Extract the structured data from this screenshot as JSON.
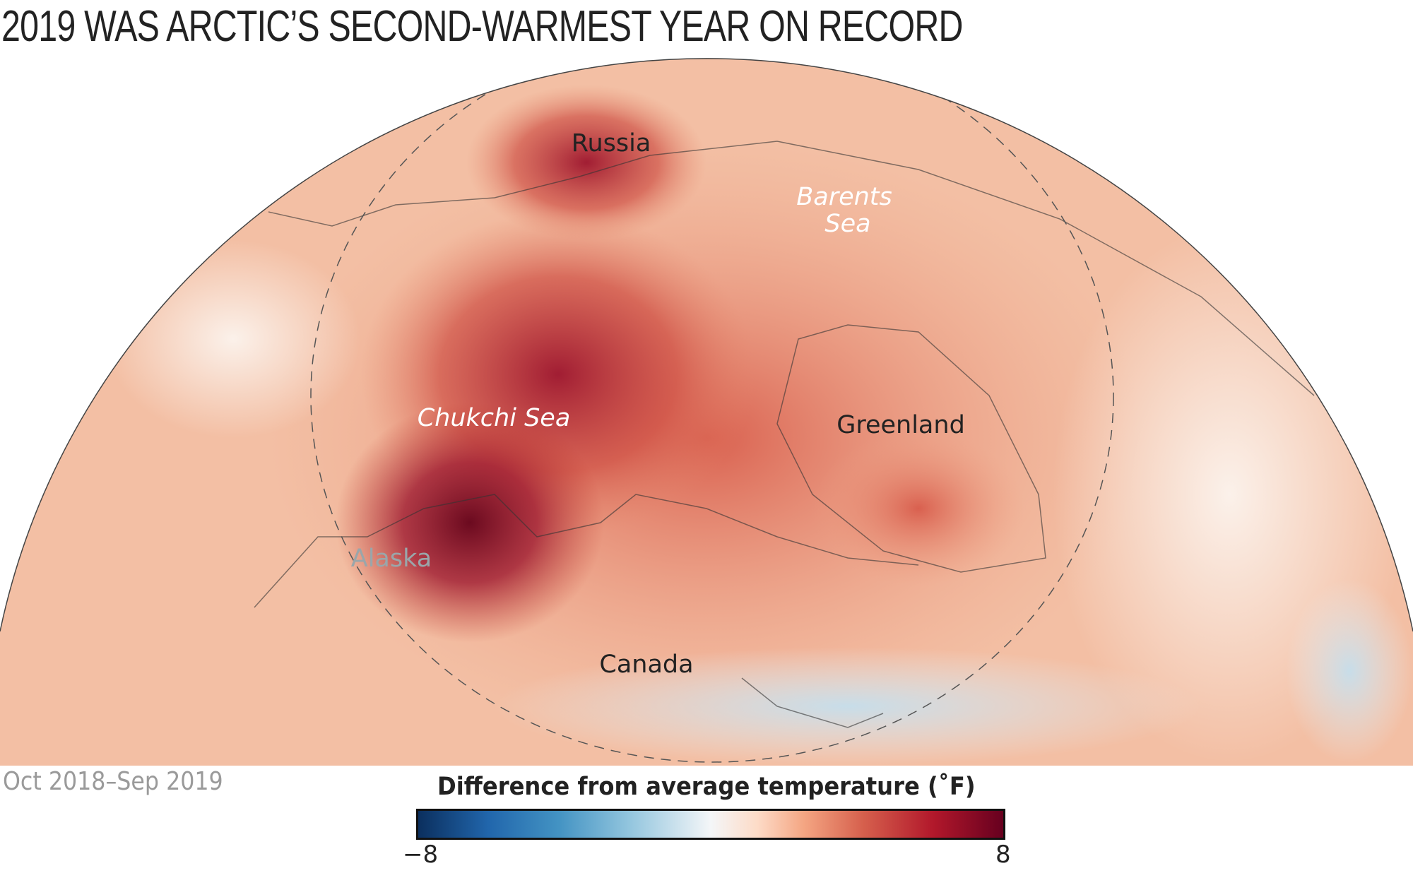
{
  "title": "2019 WAS ARCTIC’S SECOND-WARMEST YEAR ON RECORD",
  "period": "Oct 2018–Sep 2019",
  "labels": {
    "russia": "Russia",
    "barents_1": "Barents",
    "barents_2": "Sea",
    "chukchi": "Chukchi Sea",
    "greenland": "Greenland",
    "alaska": "Alaska",
    "canada": "Canada"
  },
  "legend": {
    "title": "Difference from average temperature (˚F)",
    "min": "−8",
    "max": "8",
    "colors": [
      "#0b2f5e",
      "#2166ac",
      "#92c5de",
      "#f4f6f8",
      "#f4a582",
      "#b2182b",
      "#67001f"
    ]
  }
}
